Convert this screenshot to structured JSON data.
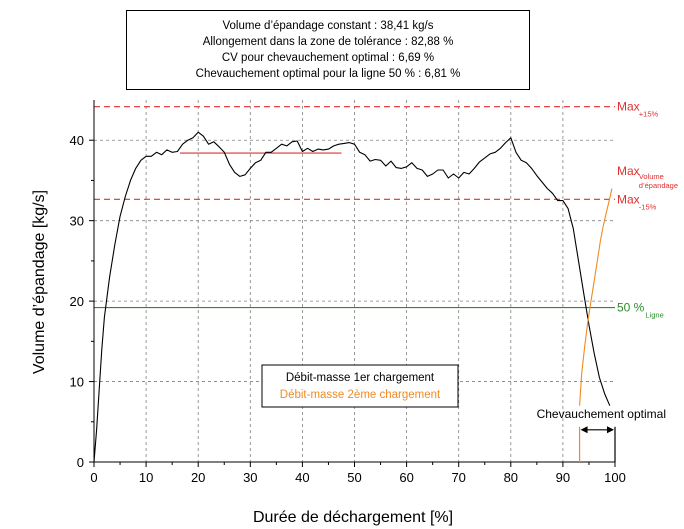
{
  "info_box": {
    "lines": [
      "Volume d’épandage constant : 38,41 kg/s",
      "Allongement dans la zone de tolérance : 82,88 %",
      "CV pour chevauchement optimal : 6,69 %",
      "Chevauchement optimal pour la ligne 50 % : 6,81 %"
    ]
  },
  "colors": {
    "series1": "#000000",
    "series2": "#f08a24",
    "tolerance": "#e03030",
    "volume_line": "#e03030",
    "line50": "#2e8b2e",
    "grid": "#808080"
  },
  "chart_data": {
    "type": "line",
    "xlabel": "Durée de déchargement [%]",
    "ylabel": "Volume d’épandage  [kg/s]",
    "xlim": [
      0,
      100
    ],
    "ylim": [
      0,
      45
    ],
    "xticks": [
      0,
      10,
      20,
      30,
      40,
      50,
      60,
      70,
      80,
      90,
      100
    ],
    "yticks": [
      0,
      10,
      20,
      30,
      40
    ],
    "grid": true,
    "legend": {
      "position": "bottom-center",
      "entries": [
        "Débit-masse 1er chargement",
        "Débit-masse 2ème chargement"
      ]
    },
    "series": [
      {
        "name": "Débit-masse 1er chargement",
        "color": "#000000",
        "x": [
          0,
          0.5,
          1,
          1.5,
          2,
          3,
          4,
          5,
          6,
          7,
          8,
          9,
          10,
          11,
          12,
          13,
          14,
          15,
          16,
          17,
          18,
          19,
          20,
          21,
          22,
          23,
          24,
          25,
          26,
          27,
          28,
          29,
          30,
          31,
          32,
          33,
          34,
          35,
          36,
          37,
          38,
          39,
          40,
          41,
          42,
          43,
          44,
          45,
          46,
          47,
          48,
          49,
          50,
          51,
          52,
          53,
          54,
          55,
          56,
          57,
          58,
          59,
          60,
          61,
          62,
          63,
          64,
          65,
          66,
          67,
          68,
          69,
          70,
          71,
          72,
          73,
          74,
          75,
          76,
          77,
          78,
          79,
          80,
          81,
          82,
          83,
          84,
          85,
          86,
          87,
          88,
          89,
          90,
          91,
          92,
          93,
          94,
          95,
          96,
          97,
          98,
          99
        ],
        "y": [
          0,
          4,
          9,
          14,
          18,
          23,
          27,
          30.5,
          33,
          35,
          36.5,
          37.5,
          38,
          38,
          38.5,
          38.2,
          38.8,
          38.5,
          38.6,
          39.5,
          40,
          40.3,
          41,
          40.5,
          39.5,
          39.8,
          39.2,
          38.5,
          37,
          36,
          35.5,
          35.7,
          36.5,
          37.2,
          37.5,
          38.5,
          38.5,
          39,
          39.5,
          39.3,
          39.8,
          39.9,
          38.6,
          39,
          38.6,
          38.9,
          38.8,
          38.9,
          39.3,
          39.5,
          39.6,
          39.7,
          39.5,
          38.5,
          38.2,
          37.4,
          37.6,
          37.5,
          36.8,
          37.4,
          36.6,
          36.5,
          36.7,
          37.2,
          36.5,
          36.3,
          35.5,
          35.8,
          36.3,
          36.3,
          35.3,
          35.8,
          35.3,
          36,
          35.8,
          36.5,
          37.3,
          37.8,
          38.3,
          38.5,
          39,
          39.7,
          40.3,
          38.5,
          37.5,
          37.2,
          36.5,
          35.6,
          34.8,
          34,
          33.4,
          32.5,
          32.5,
          31.5,
          29,
          25,
          21,
          17,
          13.5,
          10.5,
          8.5,
          7
        ]
      },
      {
        "name": "Débit-masse 2ème chargement",
        "color": "#f08a24",
        "x": [
          93.2,
          93.6,
          94.2,
          94.8,
          95.4,
          96,
          96.6,
          97.2,
          97.8,
          98.4,
          99,
          99.4
        ],
        "y": [
          7,
          11,
          14.5,
          17.5,
          20,
          22.5,
          25,
          27.5,
          29.5,
          31.2,
          32.8,
          34
        ]
      }
    ],
    "reference_lines": [
      {
        "label": "Max",
        "sublabel": "+15%",
        "y": 44.17,
        "style": "dashed",
        "color": "#e03030"
      },
      {
        "label": "Max",
        "sublabel": "Volume d’épandage",
        "y": 38.41,
        "x_range": [
          16.5,
          47.5
        ],
        "style": "solid",
        "color": "#e03030"
      },
      {
        "label": "Max",
        "sublabel": "-15%",
        "y": 32.65,
        "style": "dashed",
        "color": "#e03030"
      },
      {
        "label": "50 %",
        "sublabel": "Ligne",
        "y": 19.2,
        "style": "solid",
        "color": "#2e8b2e"
      }
    ],
    "annotation": {
      "text": "Chevauchement optimal",
      "x_range": [
        93.2,
        100
      ],
      "y": 5
    }
  }
}
